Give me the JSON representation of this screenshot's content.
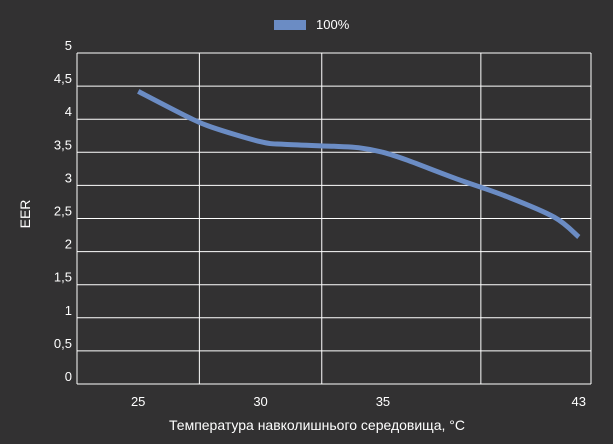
{
  "chart_data": {
    "type": "line",
    "xlabel": "Температура навколишнього середовища, °C",
    "ylabel": "EER",
    "xlim": [
      22.5,
      43.5
    ],
    "ylim": [
      0,
      5
    ],
    "x_ticks": [
      25,
      30,
      35,
      43
    ],
    "x_tick_labels": [
      "25",
      "30",
      "35",
      "43"
    ],
    "y_ticks": [
      0,
      0.5,
      1,
      1.5,
      2,
      2.5,
      3,
      3.5,
      4,
      4.5,
      5
    ],
    "y_tick_labels": [
      "0",
      "0,5",
      "1",
      "1,5",
      "2",
      "2,5",
      "3",
      "3,5",
      "4",
      "4,5",
      "5"
    ],
    "grid": true,
    "legend_position": "top-center",
    "series": [
      {
        "name": "100%",
        "color": "#6b8cc4",
        "x": [
          25,
          27,
          28,
          30,
          31,
          33,
          34,
          35,
          36,
          38,
          40,
          42,
          43
        ],
        "y": [
          4.42,
          4.04,
          3.88,
          3.66,
          3.62,
          3.59,
          3.57,
          3.5,
          3.38,
          3.1,
          2.84,
          2.52,
          2.22
        ]
      }
    ]
  },
  "colors": {
    "background": "#323132",
    "grid": "#ffffff",
    "text": "#ffffff"
  }
}
